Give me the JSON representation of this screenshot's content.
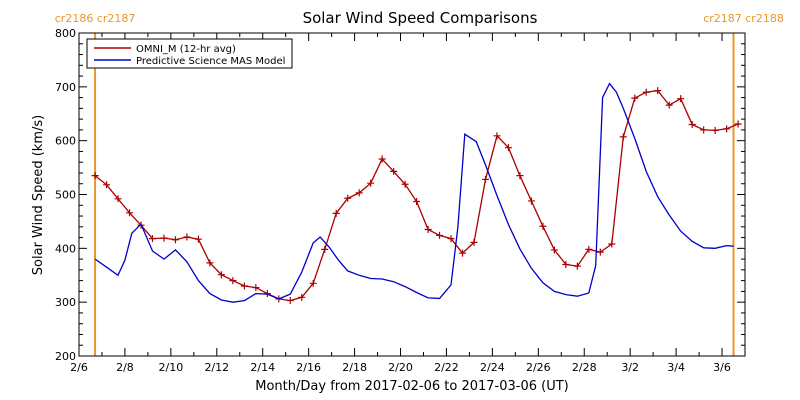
{
  "chart_data": {
    "type": "line",
    "title": "Solar Wind Speed Comparisons",
    "xlabel": "Month/Day from 2017-02-06 to 2017-03-06 (UT)",
    "ylabel": "Solar Wind Speed (km/s)",
    "xlim_days": [
      0,
      29
    ],
    "ylim": [
      200,
      800
    ],
    "y_ticks": [
      200,
      300,
      400,
      500,
      600,
      700,
      800
    ],
    "x_ticks": [
      {
        "day": 0,
        "label": "2/6"
      },
      {
        "day": 2,
        "label": "2/8"
      },
      {
        "day": 4,
        "label": "2/10"
      },
      {
        "day": 6,
        "label": "2/12"
      },
      {
        "day": 8,
        "label": "2/14"
      },
      {
        "day": 10,
        "label": "2/16"
      },
      {
        "day": 12,
        "label": "2/18"
      },
      {
        "day": 14,
        "label": "2/20"
      },
      {
        "day": 16,
        "label": "2/22"
      },
      {
        "day": 18,
        "label": "2/24"
      },
      {
        "day": 20,
        "label": "2/26"
      },
      {
        "day": 22,
        "label": "2/28"
      },
      {
        "day": 24,
        "label": "3/2"
      },
      {
        "day": 26,
        "label": "3/4"
      },
      {
        "day": 28,
        "label": "3/6"
      }
    ],
    "carrington_boundaries": [
      {
        "day": 0.7,
        "label": "cr2186 cr2187"
      },
      {
        "day": 28.5,
        "label": "cr2187 cr2188"
      }
    ],
    "legend_position": "top-left",
    "series": [
      {
        "name": "OMNI_M (12-hr avg)",
        "color": "#aa0000",
        "marker": "plus",
        "days": [
          0.7,
          1.2,
          1.7,
          2.2,
          2.7,
          3.2,
          3.7,
          4.2,
          4.7,
          5.2,
          5.7,
          6.2,
          6.7,
          7.2,
          7.7,
          8.2,
          8.7,
          9.2,
          9.7,
          10.2,
          10.7,
          11.2,
          11.7,
          12.2,
          12.7,
          13.2,
          13.7,
          14.2,
          14.7,
          15.2,
          15.7,
          16.2,
          16.7,
          17.2,
          17.7,
          18.2,
          18.7,
          19.2,
          19.7,
          20.2,
          20.7,
          21.2,
          21.7,
          22.2,
          22.7,
          23.2,
          23.7,
          24.2,
          24.7,
          25.2,
          25.7,
          26.2,
          26.7,
          27.2,
          27.7,
          28.2,
          28.7
        ],
        "values": [
          535,
          518,
          492,
          466,
          443,
          418,
          419,
          416,
          421,
          417,
          373,
          351,
          340,
          330,
          327,
          316,
          306,
          303,
          309,
          335,
          398,
          465,
          493,
          503,
          521,
          566,
          543,
          519,
          487,
          435,
          424,
          418,
          391,
          411,
          528,
          609,
          587,
          535,
          488,
          441,
          397,
          370,
          367,
          398,
          393,
          408,
          607,
          679,
          690,
          693,
          666,
          678,
          630,
          620,
          619,
          622,
          631
        ]
      },
      {
        "name": "Predictive Science MAS Model",
        "color": "#0000cc",
        "marker": "none",
        "days": [
          0.7,
          1.2,
          1.7,
          2.0,
          2.3,
          2.7,
          3.2,
          3.7,
          4.2,
          4.7,
          5.2,
          5.7,
          6.2,
          6.7,
          7.2,
          7.7,
          8.2,
          8.7,
          9.2,
          9.7,
          10.2,
          10.5,
          10.9,
          11.3,
          11.7,
          12.2,
          12.7,
          13.2,
          13.7,
          14.2,
          14.7,
          15.2,
          15.7,
          16.2,
          16.5,
          16.8,
          17.3,
          17.7,
          18.2,
          18.7,
          19.2,
          19.7,
          20.2,
          20.7,
          21.2,
          21.7,
          22.2,
          22.5,
          22.8,
          23.1,
          23.4,
          23.7,
          24.2,
          24.7,
          25.2,
          25.7,
          26.2,
          26.7,
          27.2,
          27.7,
          28.2,
          28.5
        ],
        "values": [
          380,
          365,
          350,
          378,
          428,
          445,
          395,
          380,
          397,
          375,
          340,
          316,
          304,
          300,
          303,
          316,
          315,
          306,
          315,
          356,
          410,
          421,
          402,
          378,
          358,
          350,
          344,
          343,
          338,
          329,
          318,
          308,
          307,
          332,
          440,
          612,
          598,
          555,
          498,
          444,
          399,
          363,
          336,
          320,
          314,
          311,
          317,
          368,
          680,
          706,
          690,
          660,
          604,
          543,
          496,
          462,
          432,
          413,
          401,
          400,
          405,
          404
        ]
      }
    ]
  }
}
